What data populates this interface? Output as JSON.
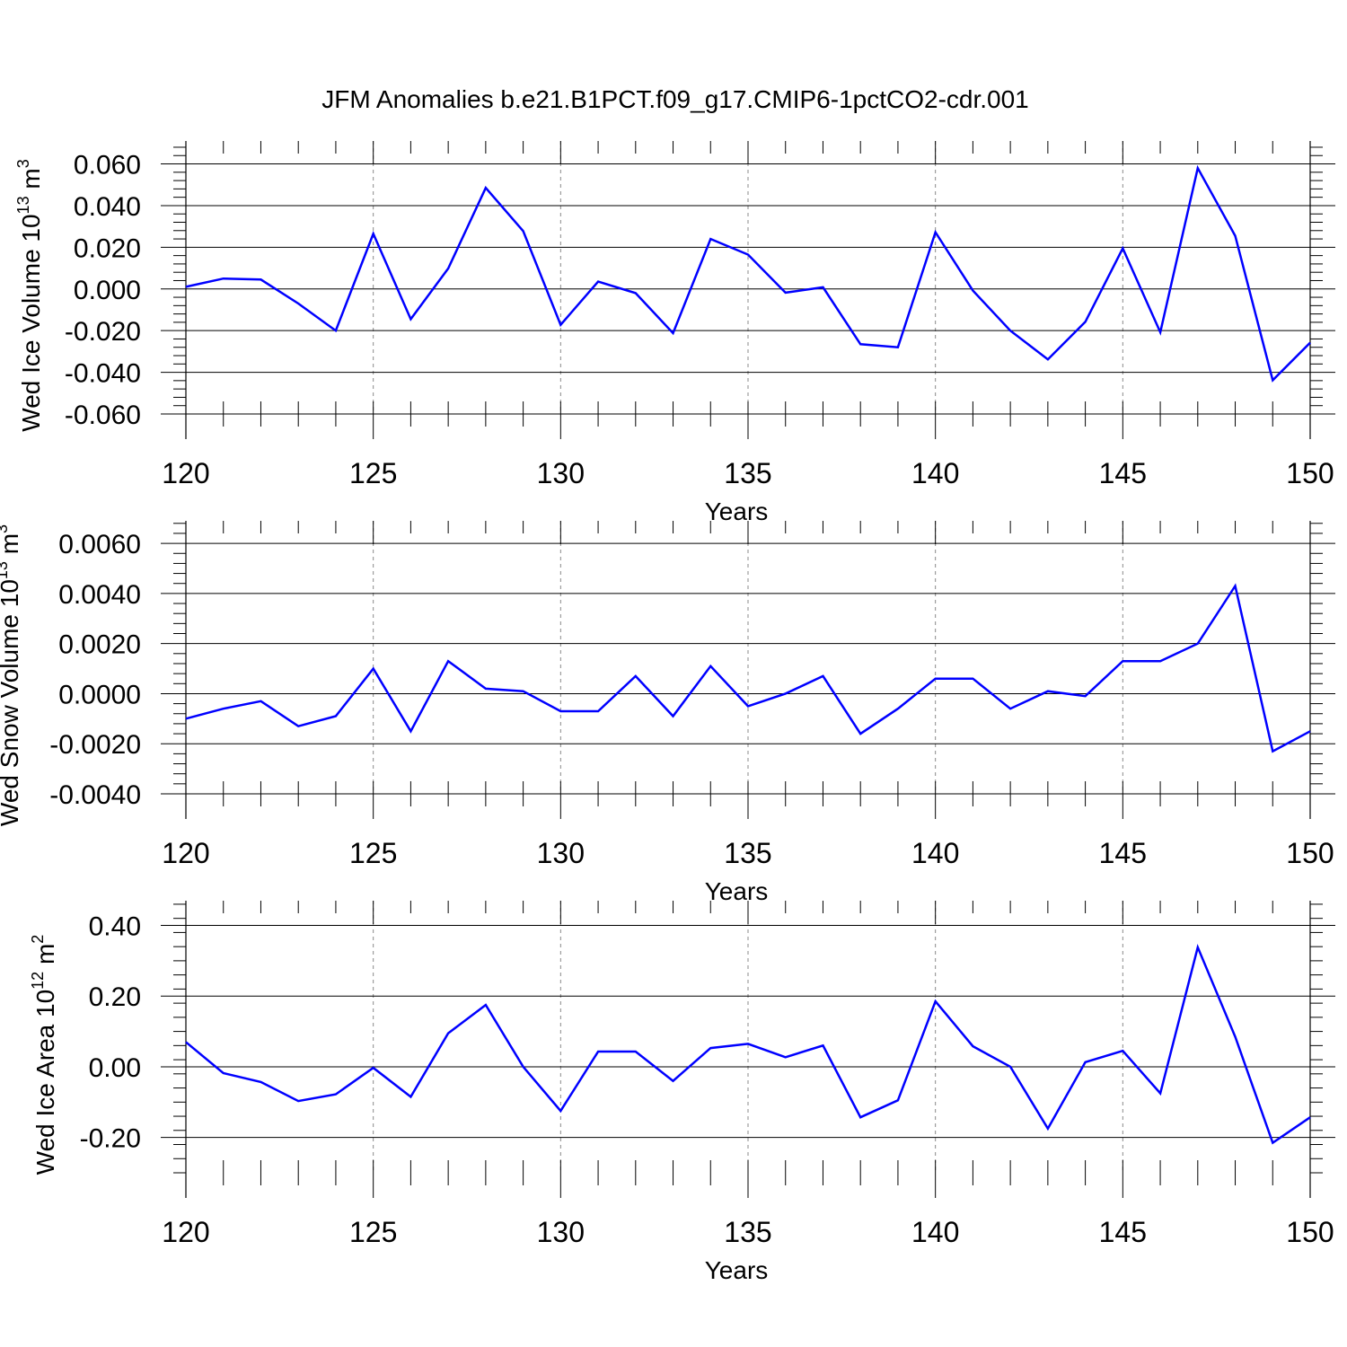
{
  "title": "JFM Anomalies b.e21.B1PCT.f09_g17.CMIP6-1pctCO2-cdr.001",
  "colors": {
    "line": "#0000ff",
    "axis": "#000000",
    "grid": "#888888"
  },
  "chart_data": [
    {
      "type": "line",
      "ylabel_main": "Wed Ice Volume 10",
      "ylabel_exp": "13",
      "ylabel_unit": " m",
      "ylabel_unit_exp": "3",
      "xlabel": "Years",
      "xlim": [
        120,
        150
      ],
      "ylim": [
        -0.06,
        0.071
      ],
      "yticks": [
        -0.06,
        -0.04,
        -0.02,
        0.0,
        0.02,
        0.04,
        0.06
      ],
      "ytick_labels": [
        "-0.060",
        "-0.040",
        "-0.020",
        "0.000",
        "0.020",
        "0.040",
        "0.060"
      ],
      "xticks": [
        120,
        125,
        130,
        135,
        140,
        145,
        150
      ],
      "xtick_labels": [
        "120",
        "125",
        "130",
        "135",
        "140",
        "145",
        "150"
      ],
      "grid_x": [
        125,
        130,
        135,
        140,
        145
      ],
      "series": [
        {
          "x": [
            120,
            121,
            122,
            123,
            124,
            125,
            126,
            127,
            128,
            129,
            130,
            131,
            132,
            133,
            134,
            135,
            136,
            137,
            138,
            139,
            140,
            141,
            142,
            143,
            144,
            145,
            146,
            147,
            148,
            149,
            150
          ],
          "values": [
            0.001,
            0.005,
            0.0045,
            -0.007,
            -0.02,
            0.0265,
            -0.0145,
            0.0098,
            0.0485,
            0.0278,
            -0.0172,
            0.0035,
            -0.002,
            -0.0212,
            0.024,
            0.0165,
            -0.0018,
            0.0008,
            -0.0265,
            -0.028,
            0.0272,
            -0.0008,
            -0.02,
            -0.0338,
            -0.0158,
            0.0195,
            -0.0208,
            0.058,
            0.0255,
            -0.0438,
            -0.0258
          ]
        }
      ]
    },
    {
      "type": "line",
      "ylabel_main": "Wed Snow Volume 10",
      "ylabel_exp": "13",
      "ylabel_unit": " m",
      "ylabel_unit_exp": "3",
      "xlabel": "Years",
      "xlim": [
        120,
        150
      ],
      "ylim": [
        -0.004,
        0.0069
      ],
      "yticks": [
        -0.004,
        -0.002,
        0.0,
        0.002,
        0.004,
        0.006
      ],
      "ytick_labels": [
        "-0.0040",
        "-0.0020",
        "0.0000",
        "0.0020",
        "0.0040",
        "0.0060"
      ],
      "xticks": [
        120,
        125,
        130,
        135,
        140,
        145,
        150
      ],
      "xtick_labels": [
        "120",
        "125",
        "130",
        "135",
        "140",
        "145",
        "150"
      ],
      "grid_x": [
        125,
        130,
        135,
        140,
        145
      ],
      "series": [
        {
          "x": [
            120,
            121,
            122,
            123,
            124,
            125,
            126,
            127,
            128,
            129,
            130,
            131,
            132,
            133,
            134,
            135,
            136,
            137,
            138,
            139,
            140,
            141,
            142,
            143,
            144,
            145,
            146,
            147,
            148,
            149,
            150
          ],
          "values": [
            -0.001,
            -0.0006,
            -0.0003,
            -0.0013,
            -0.0009,
            0.001,
            -0.0015,
            0.0013,
            0.0002,
            0.0001,
            -0.0007,
            -0.0007,
            0.0007,
            -0.0009,
            0.0011,
            -0.0005,
            0.0,
            0.0007,
            -0.0016,
            -0.0006,
            0.0006,
            0.0006,
            -0.0006,
            0.0001,
            -0.0001,
            0.0013,
            0.0013,
            0.002,
            0.0043,
            -0.0023,
            -0.0015
          ]
        }
      ]
    },
    {
      "type": "line",
      "ylabel_main": "Wed Ice Area 10",
      "ylabel_exp": "12",
      "ylabel_unit": " m",
      "ylabel_unit_exp": "2",
      "xlabel": "Years",
      "xlim": [
        120,
        150
      ],
      "ylim": [
        -0.3,
        0.47
      ],
      "yticks": [
        -0.2,
        0.0,
        0.2,
        0.4
      ],
      "ytick_labels": [
        "-0.20",
        "0.00",
        "0.20",
        "0.40"
      ],
      "xticks": [
        120,
        125,
        130,
        135,
        140,
        145,
        150
      ],
      "xtick_labels": [
        "120",
        "125",
        "130",
        "135",
        "140",
        "145",
        "150"
      ],
      "grid_x": [
        125,
        130,
        135,
        140,
        145
      ],
      "series": [
        {
          "x": [
            120,
            121,
            122,
            123,
            124,
            125,
            126,
            127,
            128,
            129,
            130,
            131,
            132,
            133,
            134,
            135,
            136,
            137,
            138,
            139,
            140,
            141,
            142,
            143,
            144,
            145,
            146,
            147,
            148,
            149,
            150
          ],
          "values": [
            0.07,
            -0.018,
            -0.043,
            -0.097,
            -0.078,
            -0.003,
            -0.085,
            0.095,
            0.175,
            0.0,
            -0.125,
            0.043,
            0.043,
            -0.04,
            0.053,
            0.065,
            0.027,
            0.06,
            -0.143,
            -0.095,
            0.185,
            0.058,
            0.0,
            -0.175,
            0.013,
            0.045,
            -0.075,
            0.338,
            0.085,
            -0.215,
            -0.143
          ]
        }
      ]
    }
  ]
}
